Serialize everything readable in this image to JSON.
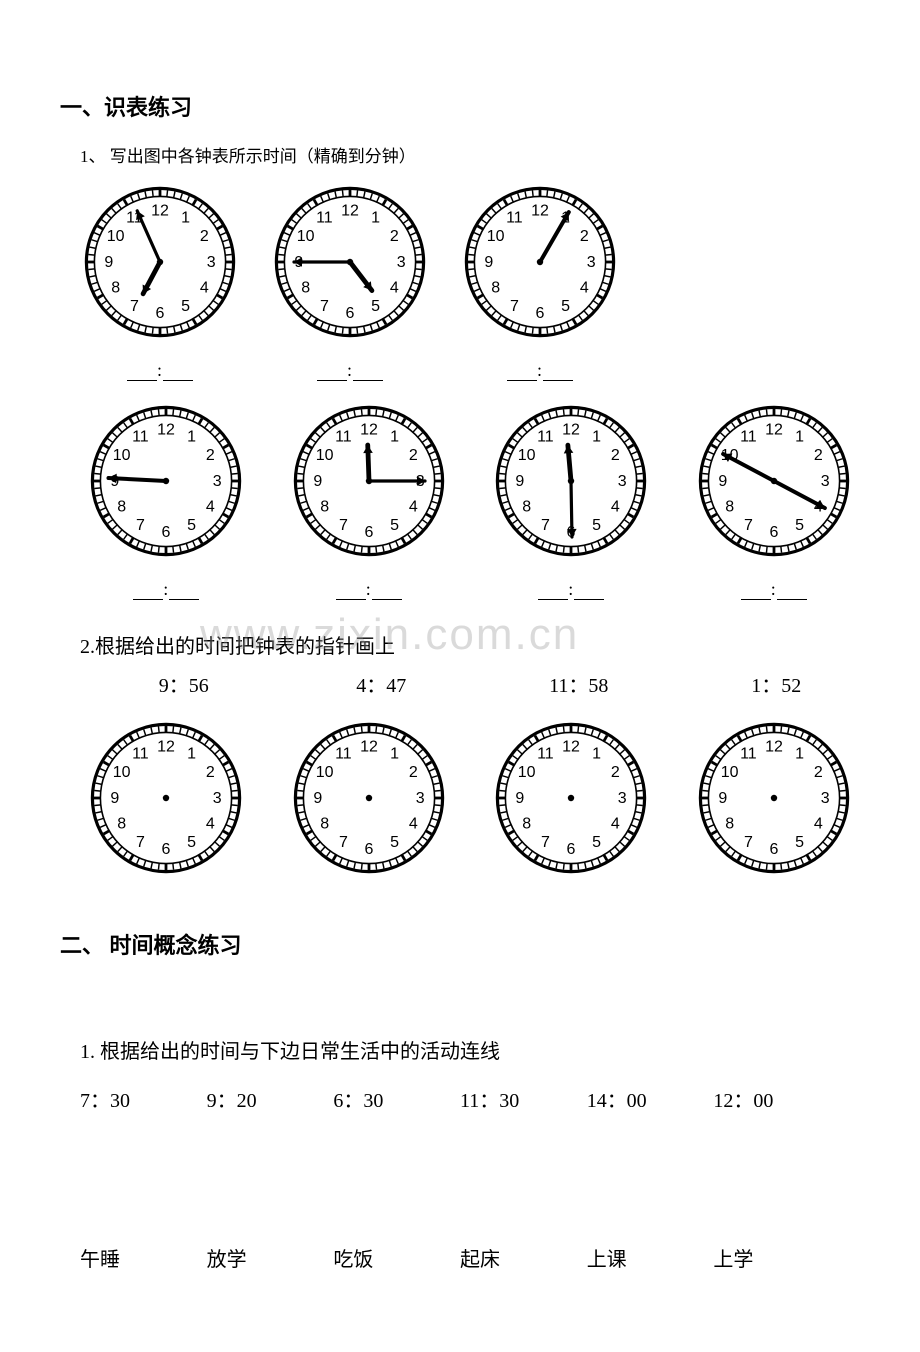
{
  "section1": {
    "title": "一、识表练习",
    "q1_label": "1、 写出图中各钟表所示时间（精确到分钟）",
    "clocks_row1": [
      {
        "hour": 6,
        "minute": 56,
        "show_hour": true,
        "show_minute": true
      },
      {
        "hour": 4,
        "minute": 45,
        "show_hour": true,
        "show_minute": true
      },
      {
        "hour": 1,
        "minute": 5,
        "show_hour": false,
        "show_minute_only": true,
        "minute_angle_deg": 30
      }
    ],
    "clocks_row2": [
      {
        "hour": 8,
        "minute": 45,
        "show_hour": false,
        "show_minute_only": true,
        "minute_angle_deg": 273
      },
      {
        "hour": 12,
        "minute": 15,
        "show_hour": true,
        "show_minute": true,
        "hour_override_deg": 358
      },
      {
        "hour": 11,
        "minute": 30,
        "show_hour": true,
        "show_minute": true,
        "hour_override_deg": 355,
        "minute_override_deg": 179
      },
      {
        "hour": 10,
        "minute": 20,
        "show_hour": false,
        "show_minute_only": true,
        "two_ended": true,
        "angle_a_deg": 298,
        "angle_b_deg": 118
      }
    ],
    "q2_label": "2.根据给出的时间把钟表的指针画上",
    "draw_times": [
      "9：56",
      "4：47",
      "11：58",
      "1：52"
    ]
  },
  "section2": {
    "title": "二、 时间概念练习",
    "q1_label": "1.  根据给出的时间与下边日常生活中的活动连线",
    "times": [
      "7：30",
      "9：20",
      "6：30",
      "11：30",
      "14：00",
      "12：00"
    ],
    "activities": [
      "午睡",
      "放学",
      "吃饭",
      "起床",
      "上课",
      "上学"
    ]
  },
  "watermark": "www.zixin.com.cn",
  "style": {
    "clock_stroke": "#000000",
    "clock_fill": "#ffffff",
    "hand_stroke": "#000000"
  }
}
